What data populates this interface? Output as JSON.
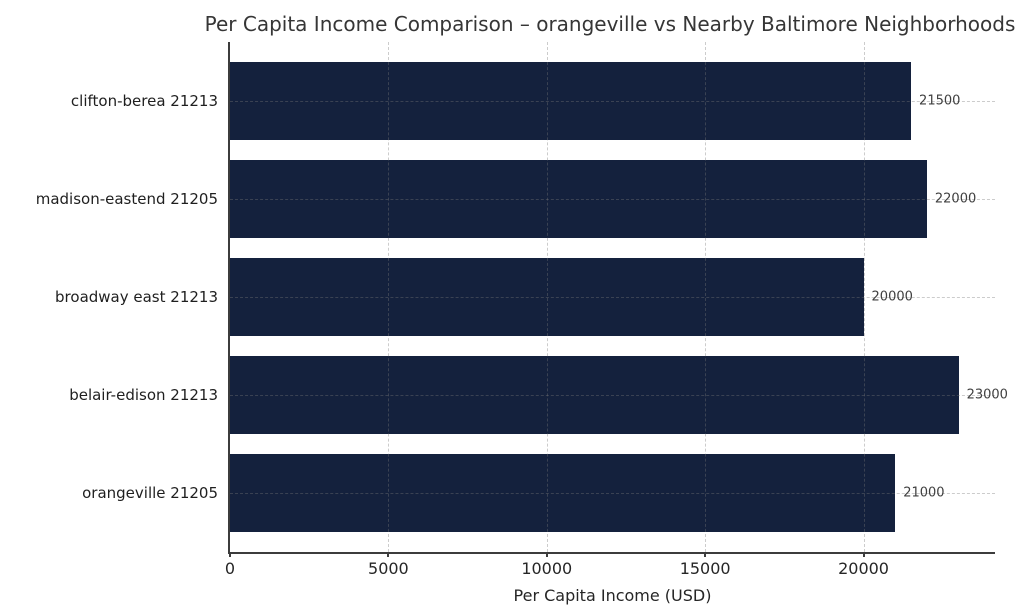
{
  "chart_data": {
    "type": "bar",
    "orientation": "horizontal",
    "title": "Per Capita Income Comparison – orangeville vs Nearby Baltimore Neighborhoods",
    "categories": [
      "clifton-berea 21213",
      "madison-eastend 21205",
      "broadway east 21213",
      "belair-edison 21213",
      "orangeville 21205"
    ],
    "values": [
      21500,
      22000,
      20000,
      23000,
      21000
    ],
    "value_labels": [
      "21500",
      "22000",
      "20000",
      "23000",
      "21000"
    ],
    "xlabel": "Per Capita Income (USD)",
    "xlim": [
      0,
      24150
    ],
    "xticks": [
      0,
      5000,
      10000,
      15000,
      20000
    ],
    "xtick_labels": [
      "0",
      "5000",
      "10000",
      "15000",
      "20000"
    ],
    "bar_color": "#14213d",
    "grid": "dashed, both axes, drawn above bars",
    "legend": "none"
  }
}
